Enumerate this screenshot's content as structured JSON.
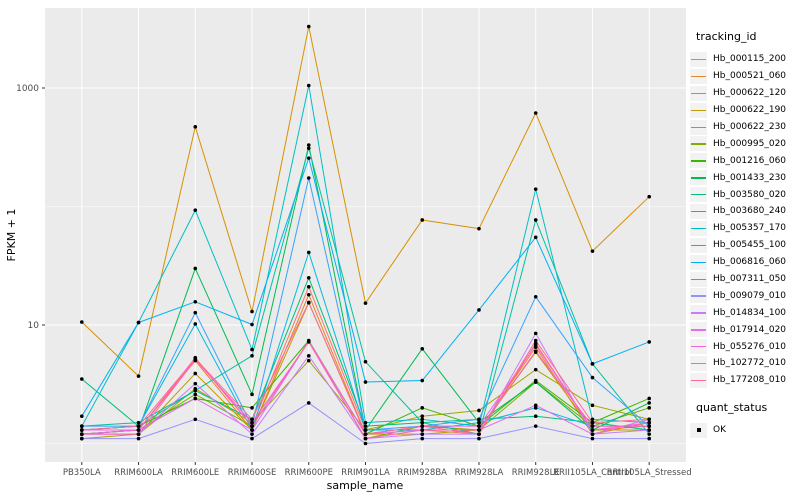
{
  "colors": {
    "panel_bg": "#EBEBEB",
    "grid": "#FFFFFF",
    "point": "#000000",
    "tick_text": "#4D4D4D",
    "axis_title": "#000000",
    "legend_key_bg": "#F2F2F2"
  },
  "chart_data": {
    "type": "line",
    "title": "",
    "xlabel": "sample_name",
    "ylabel": "FPKM + 1",
    "y_axis": {
      "scale": "log10",
      "ticks": [
        {
          "label": "10",
          "value": 10
        },
        {
          "label": "1000",
          "value": 1000
        }
      ],
      "minor_gridlines": [
        1,
        100
      ],
      "ylim": [
        0.8,
        4700
      ]
    },
    "categories": [
      "PB350LA",
      "RRIM600LA",
      "RRIM600LE",
      "RRIM600SE",
      "RRIM600PE",
      "RRIM901LA",
      "RRIM928BA",
      "RRIM928LA",
      "RRIM928LE",
      "RRII105LA_Control",
      "RRII105LA_Stressed"
    ],
    "legend": {
      "color_title": "tracking_id",
      "shape_title": "quant_status",
      "shape_entries": [
        "OK"
      ]
    },
    "series": [
      {
        "name": "Hb_000115_200",
        "color": "#F8766D",
        "values": [
          1.3,
          1.3,
          5.2,
          1.4,
          21,
          1.3,
          1.3,
          1.2,
          7.0,
          1.3,
          1.4
        ]
      },
      {
        "name": "Hb_000521_060",
        "color": "#E88526",
        "values": [
          1.2,
          1.3,
          5.0,
          1.3,
          18,
          1.2,
          1.4,
          1.3,
          6.5,
          1.2,
          1.5
        ]
      },
      {
        "name": "Hb_000622_120",
        "color": "#D89000",
        "values": [
          10.6,
          3.7,
          470,
          13,
          3300,
          15.3,
          77,
          65,
          615,
          42,
          121
        ]
      },
      {
        "name": "Hb_000622_190",
        "color": "#C09B00",
        "values": [
          1.2,
          1.2,
          3.9,
          1.3,
          15.4,
          1.2,
          1.2,
          1.3,
          5.9,
          1.3,
          1.3
        ]
      },
      {
        "name": "Hb_000622_230",
        "color": "#A3A500",
        "values": [
          1.1,
          1.2,
          2.9,
          1.5,
          5.0,
          1.3,
          1.7,
          1.9,
          4.2,
          2.1,
          1.6
        ]
      },
      {
        "name": "Hb_000995_020",
        "color": "#7CAE00",
        "values": [
          1.2,
          1.3,
          2.6,
          1.4,
          7.3,
          1.1,
          1.4,
          1.3,
          3.3,
          1.4,
          2.0
        ]
      },
      {
        "name": "Hb_001216_060",
        "color": "#39B600",
        "values": [
          1.3,
          1.4,
          2.4,
          2.0,
          7.4,
          1.2,
          2.0,
          1.4,
          3.4,
          1.5,
          2.4
        ]
      },
      {
        "name": "Hb_001433_230",
        "color": "#00BB4E",
        "values": [
          1.2,
          1.3,
          30,
          2.6,
          330,
          1.3,
          6.3,
          1.5,
          3.3,
          1.3,
          2.2
        ]
      },
      {
        "name": "Hb_003580_020",
        "color": "#00BF7D",
        "values": [
          3.5,
          1.4,
          2.8,
          1.6,
          25,
          1.4,
          1.5,
          1.6,
          1.7,
          1.5,
          1.3
        ]
      },
      {
        "name": "Hb_003680_240",
        "color": "#00C1A3",
        "values": [
          1.4,
          1.5,
          2.8,
          5.5,
          310,
          4.9,
          1.5,
          1.2,
          77,
          4.7,
          1.2
        ]
      },
      {
        "name": "Hb_005357_170",
        "color": "#00BFC4",
        "values": [
          1.4,
          10.5,
          93,
          6.2,
          1050,
          1.5,
          1.6,
          1.4,
          140,
          1.6,
          1.5
        ]
      },
      {
        "name": "Hb_005455_100",
        "color": "#00BAE0",
        "values": [
          1.3,
          1.4,
          10.2,
          1.3,
          41,
          1.3,
          1.3,
          1.5,
          2.0,
          1.4,
          1.4
        ]
      },
      {
        "name": "Hb_006816_060",
        "color": "#00B0F6",
        "values": [
          1.7,
          10.5,
          15.7,
          10.1,
          256,
          3.3,
          3.4,
          13.4,
          55,
          4.7,
          7.2
        ]
      },
      {
        "name": "Hb_007311_050",
        "color": "#35A2FF",
        "values": [
          1.4,
          1.4,
          12.7,
          1.4,
          174,
          1.3,
          1.4,
          1.6,
          17.3,
          3.6,
          1.4
        ]
      },
      {
        "name": "Hb_009079_010",
        "color": "#9590FF",
        "values": [
          1.1,
          1.1,
          1.6,
          1.1,
          2.2,
          1.0,
          1.1,
          1.1,
          1.4,
          1.1,
          1.1
        ]
      },
      {
        "name": "Hb_014834_100",
        "color": "#C77CFF",
        "values": [
          1.2,
          1.2,
          3.2,
          1.2,
          5.5,
          1.1,
          1.2,
          1.2,
          8.5,
          1.2,
          1.3
        ]
      },
      {
        "name": "Hb_017914_020",
        "color": "#E76BF3",
        "values": [
          1.2,
          1.3,
          2.4,
          1.3,
          7.3,
          1.2,
          1.3,
          1.3,
          2.1,
          1.2,
          1.6
        ]
      },
      {
        "name": "Hb_055276_010",
        "color": "#FA62DB",
        "values": [
          1.3,
          1.3,
          5.3,
          1.4,
          7.3,
          1.2,
          1.4,
          1.4,
          6.8,
          1.3,
          1.5
        ]
      },
      {
        "name": "Hb_102772_010",
        "color": "#FF62BC",
        "values": [
          1.2,
          1.2,
          5.1,
          1.5,
          7.2,
          1.1,
          1.3,
          1.3,
          6.0,
          1.4,
          1.4
        ]
      },
      {
        "name": "Hb_177208_010",
        "color": "#FF6A98",
        "values": [
          1.3,
          1.4,
          5.2,
          1.6,
          15.5,
          1.2,
          1.4,
          1.2,
          7.4,
          1.5,
          1.6
        ]
      }
    ]
  }
}
